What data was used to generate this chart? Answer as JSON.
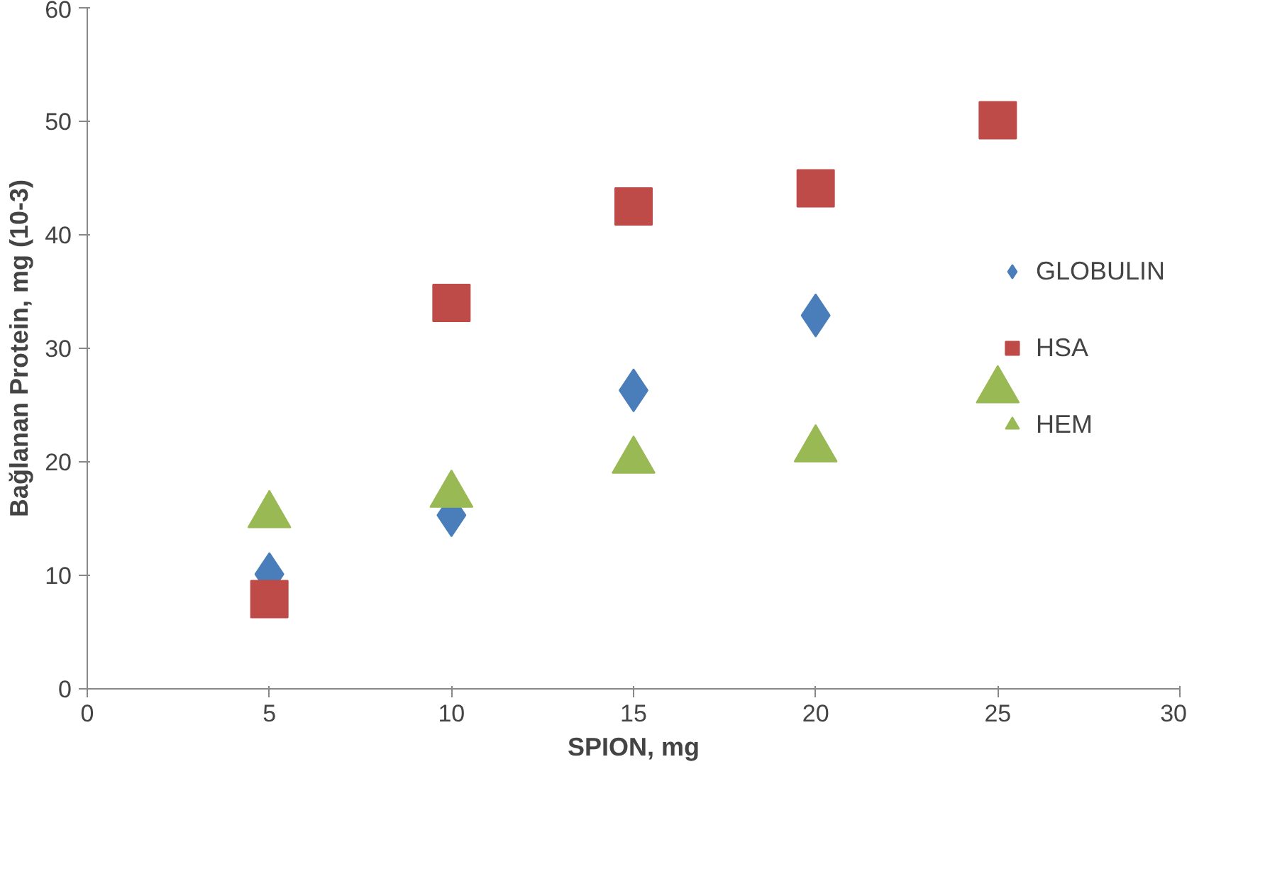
{
  "chart_data": {
    "type": "scatter",
    "xlabel": "SPION, mg",
    "ylabel": "Bağlanan Protein, mg (10-3)",
    "x": [
      5,
      10,
      15,
      20,
      25
    ],
    "series": [
      {
        "name": "GLOBULIN",
        "color": "#4a7ebb",
        "marker": "diamond",
        "values": [
          10.1,
          15.3,
          26.3,
          32.9,
          null
        ]
      },
      {
        "name": "HSA",
        "color": "#be4b48",
        "marker": "square",
        "values": [
          7.9,
          34.0,
          42.5,
          44.1,
          50.1
        ]
      },
      {
        "name": "HEM",
        "color": "#98b954",
        "marker": "triangle",
        "values": [
          15.3,
          17.1,
          20.1,
          21.1,
          26.3
        ]
      }
    ],
    "xlim": [
      0,
      30
    ],
    "xticks": [
      0,
      5,
      10,
      15,
      20,
      25,
      30
    ],
    "ylim": [
      0,
      60
    ],
    "yticks": [
      0,
      10,
      20,
      30,
      40,
      50,
      60
    ],
    "grid": false,
    "legend": "right"
  }
}
